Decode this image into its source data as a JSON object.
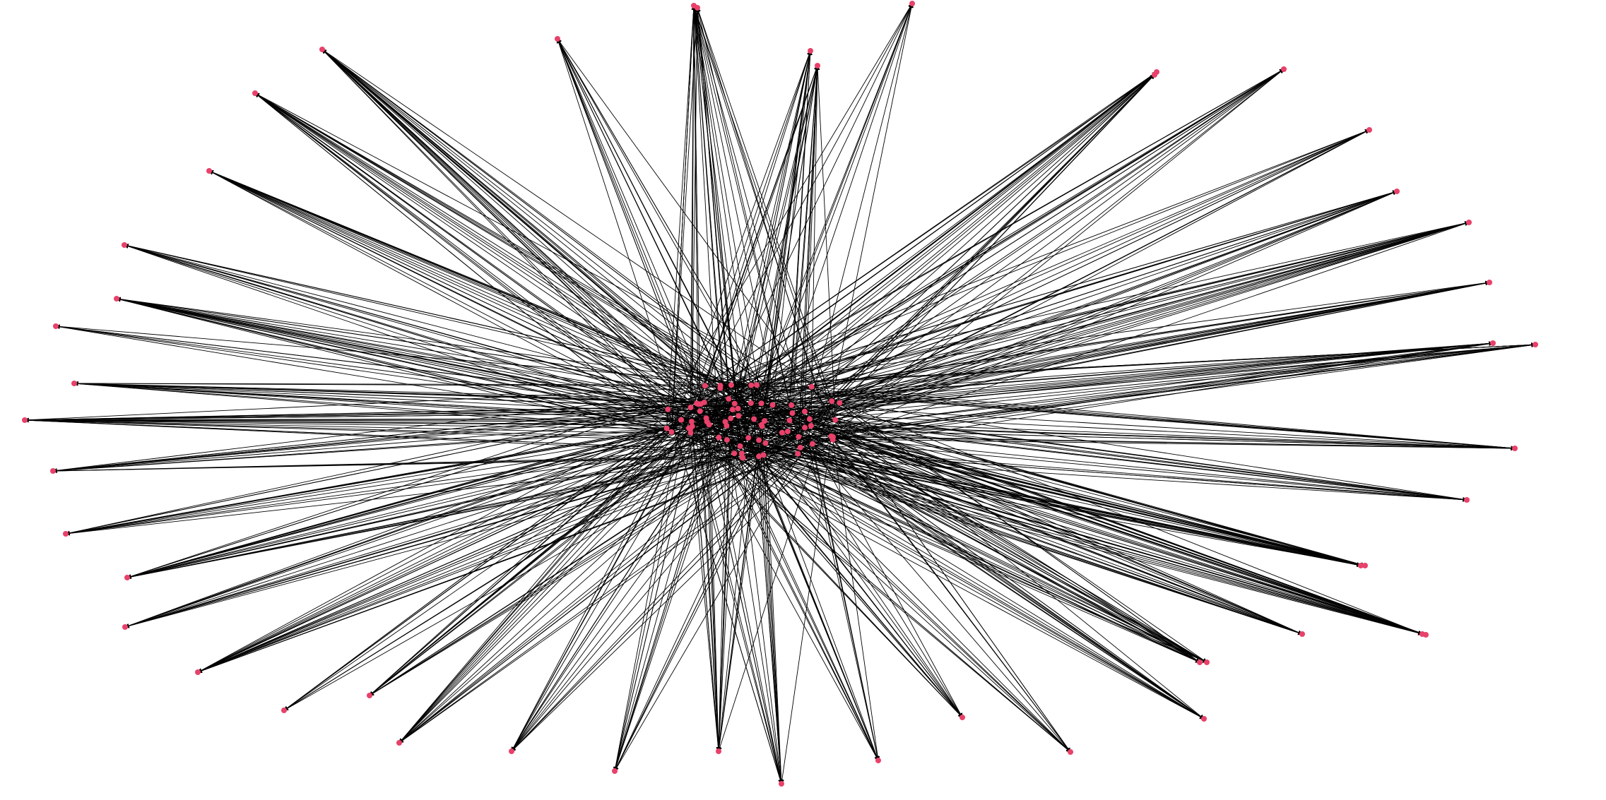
{
  "diagram": {
    "type": "directed-network",
    "layout": "radial-burst",
    "colors": {
      "background": "#ffffff",
      "edge": "#000000",
      "node": "#e8416a"
    },
    "core_node_count": 70,
    "edges_per_core_node": 10,
    "peripheral_node_count": 48
  }
}
